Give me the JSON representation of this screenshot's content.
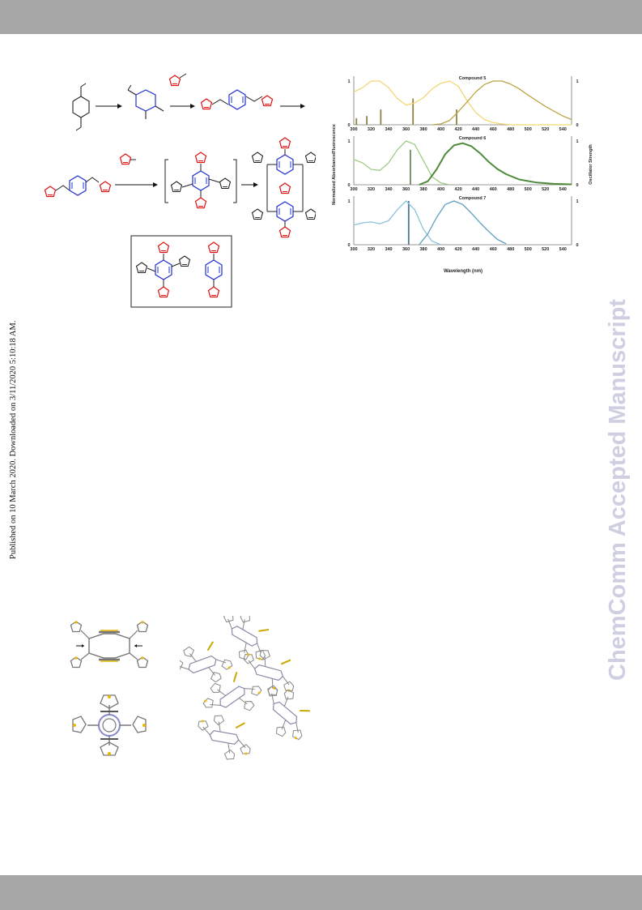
{
  "side_note": "Published on 10 March 2020. Downloaded on 3/11/2020 5:10:18 AM.",
  "watermark": "ChemComm Accepted Manuscript",
  "spectra": {
    "xlabel": "Wavelength (nm)",
    "ylabel_left": "Normalized Absorbance/Fluorescence",
    "ylabel_right": "Oscillator Strength",
    "x_ticks": [
      "300",
      "320",
      "340",
      "360",
      "380",
      "400",
      "420",
      "440",
      "460",
      "480",
      "500",
      "520",
      "540"
    ],
    "y_ticks": [
      "0",
      "1"
    ]
  },
  "chart_data": [
    {
      "type": "line",
      "title": "Compound 5",
      "xlim": [
        300,
        550
      ],
      "ylim": [
        0,
        1
      ],
      "series": [
        {
          "values_x": [
            300,
            310,
            320,
            330,
            340,
            350,
            360,
            370,
            380,
            390,
            400,
            410,
            420,
            430,
            440,
            450,
            460,
            470,
            480,
            500,
            520,
            540,
            550
          ],
          "values_y": [
            0.75,
            0.85,
            1.0,
            1.0,
            0.85,
            0.6,
            0.45,
            0.5,
            0.62,
            0.82,
            0.95,
            1.0,
            0.88,
            0.55,
            0.28,
            0.12,
            0.05,
            0.02,
            0.0,
            0.0,
            0.0,
            0.0,
            0.0
          ]
        },
        {
          "values_x": [
            390,
            400,
            410,
            420,
            430,
            440,
            450,
            460,
            470,
            480,
            490,
            500,
            520,
            540,
            550
          ],
          "values_y": [
            0.0,
            0.02,
            0.1,
            0.3,
            0.52,
            0.75,
            0.92,
            1.0,
            1.0,
            0.93,
            0.82,
            0.68,
            0.42,
            0.2,
            0.12
          ]
        }
      ],
      "sticks": [
        {
          "x": 303,
          "y": 0.15
        },
        {
          "x": 315,
          "y": 0.2
        },
        {
          "x": 331,
          "y": 0.35
        },
        {
          "x": 368,
          "y": 0.6
        },
        {
          "x": 418,
          "y": 0.35
        }
      ],
      "colors": [
        "#f2d675",
        "#b9a646",
        "#8c8445"
      ]
    },
    {
      "type": "line",
      "title": "Compound 6",
      "xlim": [
        300,
        550
      ],
      "ylim": [
        0,
        1
      ],
      "series": [
        {
          "values_x": [
            300,
            310,
            320,
            330,
            340,
            350,
            360,
            370,
            380,
            390,
            400,
            410
          ],
          "values_y": [
            0.58,
            0.5,
            0.35,
            0.33,
            0.5,
            0.8,
            1.0,
            0.92,
            0.55,
            0.18,
            0.04,
            0.0
          ]
        },
        {
          "values_x": [
            375,
            385,
            395,
            405,
            415,
            425,
            435,
            445,
            455,
            465,
            475,
            490,
            510,
            530,
            550
          ],
          "values_y": [
            0.0,
            0.08,
            0.35,
            0.7,
            0.9,
            0.95,
            0.88,
            0.72,
            0.52,
            0.36,
            0.24,
            0.12,
            0.05,
            0.02,
            0.01
          ]
        }
      ],
      "sticks": [
        {
          "x": 365,
          "y": 0.8
        }
      ],
      "colors": [
        "#9fcb87",
        "#4f8a3c",
        "#6f8a62"
      ]
    },
    {
      "type": "line",
      "title": "Compound 7",
      "xlim": [
        300,
        550
      ],
      "ylim": [
        0,
        1
      ],
      "series": [
        {
          "values_x": [
            300,
            310,
            320,
            330,
            340,
            350,
            360,
            370,
            380,
            390,
            400
          ],
          "values_y": [
            0.45,
            0.5,
            0.52,
            0.48,
            0.55,
            0.8,
            1.0,
            0.8,
            0.35,
            0.08,
            0.0
          ]
        },
        {
          "values_x": [
            375,
            385,
            395,
            405,
            415,
            425,
            435,
            445,
            455,
            465,
            475
          ],
          "values_y": [
            0.0,
            0.25,
            0.62,
            0.92,
            1.0,
            0.92,
            0.72,
            0.5,
            0.3,
            0.12,
            0.02
          ]
        }
      ],
      "sticks": [
        {
          "x": 363,
          "y": 1.0
        }
      ],
      "colors": [
        "#8cc3dc",
        "#5c9fbe",
        "#4a7890"
      ]
    }
  ]
}
